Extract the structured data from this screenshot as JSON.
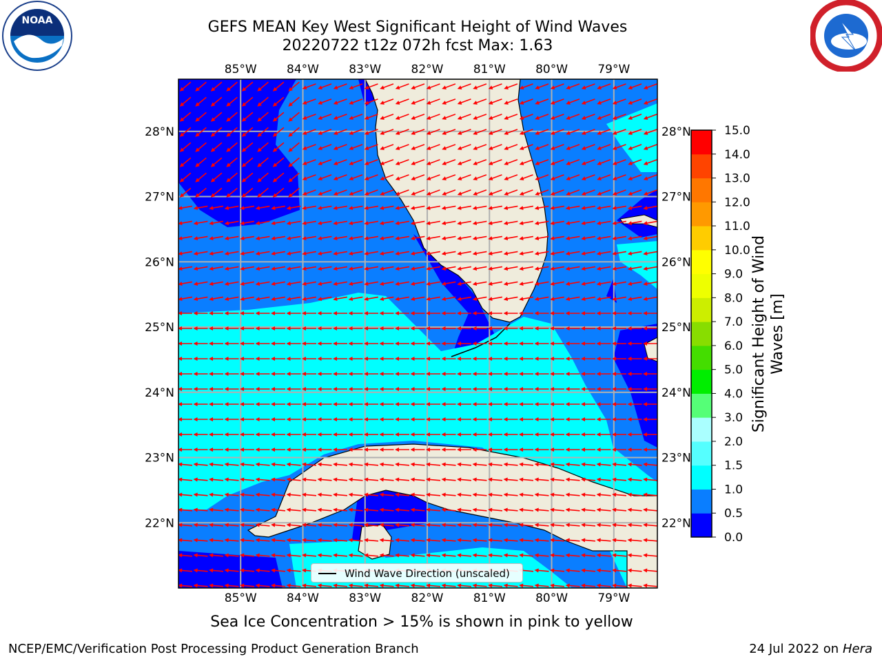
{
  "header": {
    "title_line1": "GEFS MEAN Key West Significant Height of Wind Waves",
    "title_line2": "20220722 t12z 072h fcst   Max: 1.63"
  },
  "logos": {
    "left": "noaa-logo",
    "right": "national-weather-service-logo",
    "left_text": "NOAA",
    "right_text": "NATIONAL WEATHER SERVICE"
  },
  "map": {
    "lon_labels": [
      "85°W",
      "84°W",
      "83°W",
      "82°W",
      "81°W",
      "80°W",
      "79°W"
    ],
    "lat_labels": [
      "28°N",
      "27°N",
      "26°N",
      "25°N",
      "24°N",
      "23°N",
      "22°N"
    ],
    "lon_range": [
      -86.0,
      -78.3
    ],
    "lat_range": [
      21.0,
      28.8
    ],
    "legend_label": "Wind Wave Direction (unscaled)",
    "land_color": "#efecdc",
    "arrow_color": "#ff0000"
  },
  "colorbar": {
    "label": "Significant Height of Wind Waves [m]",
    "ticks": [
      "0.0",
      "0.5",
      "1.0",
      "1.5",
      "2.0",
      "3.0",
      "4.0",
      "5.0",
      "6.0",
      "7.0",
      "8.0",
      "9.0",
      "10.0",
      "11.0",
      "12.0",
      "13.0",
      "14.0",
      "15.0"
    ],
    "colors": [
      "#0000ff",
      "#0a7eff",
      "#00ffff",
      "#55ffff",
      "#aaffff",
      "#55ff77",
      "#00ee00",
      "#44dd00",
      "#88dd00",
      "#ccee00",
      "#eeff00",
      "#ffff00",
      "#ffcc00",
      "#ff9900",
      "#ff7700",
      "#ff4400",
      "#ff0000"
    ]
  },
  "footer": {
    "subtitle": "Sea Ice Concentration > 15% is shown in pink to yellow",
    "left": "NCEP/EMC/Verification Post Processing Product Generation Branch",
    "right_date": "24 Jul 2022 on ",
    "right_host": "Hera"
  }
}
